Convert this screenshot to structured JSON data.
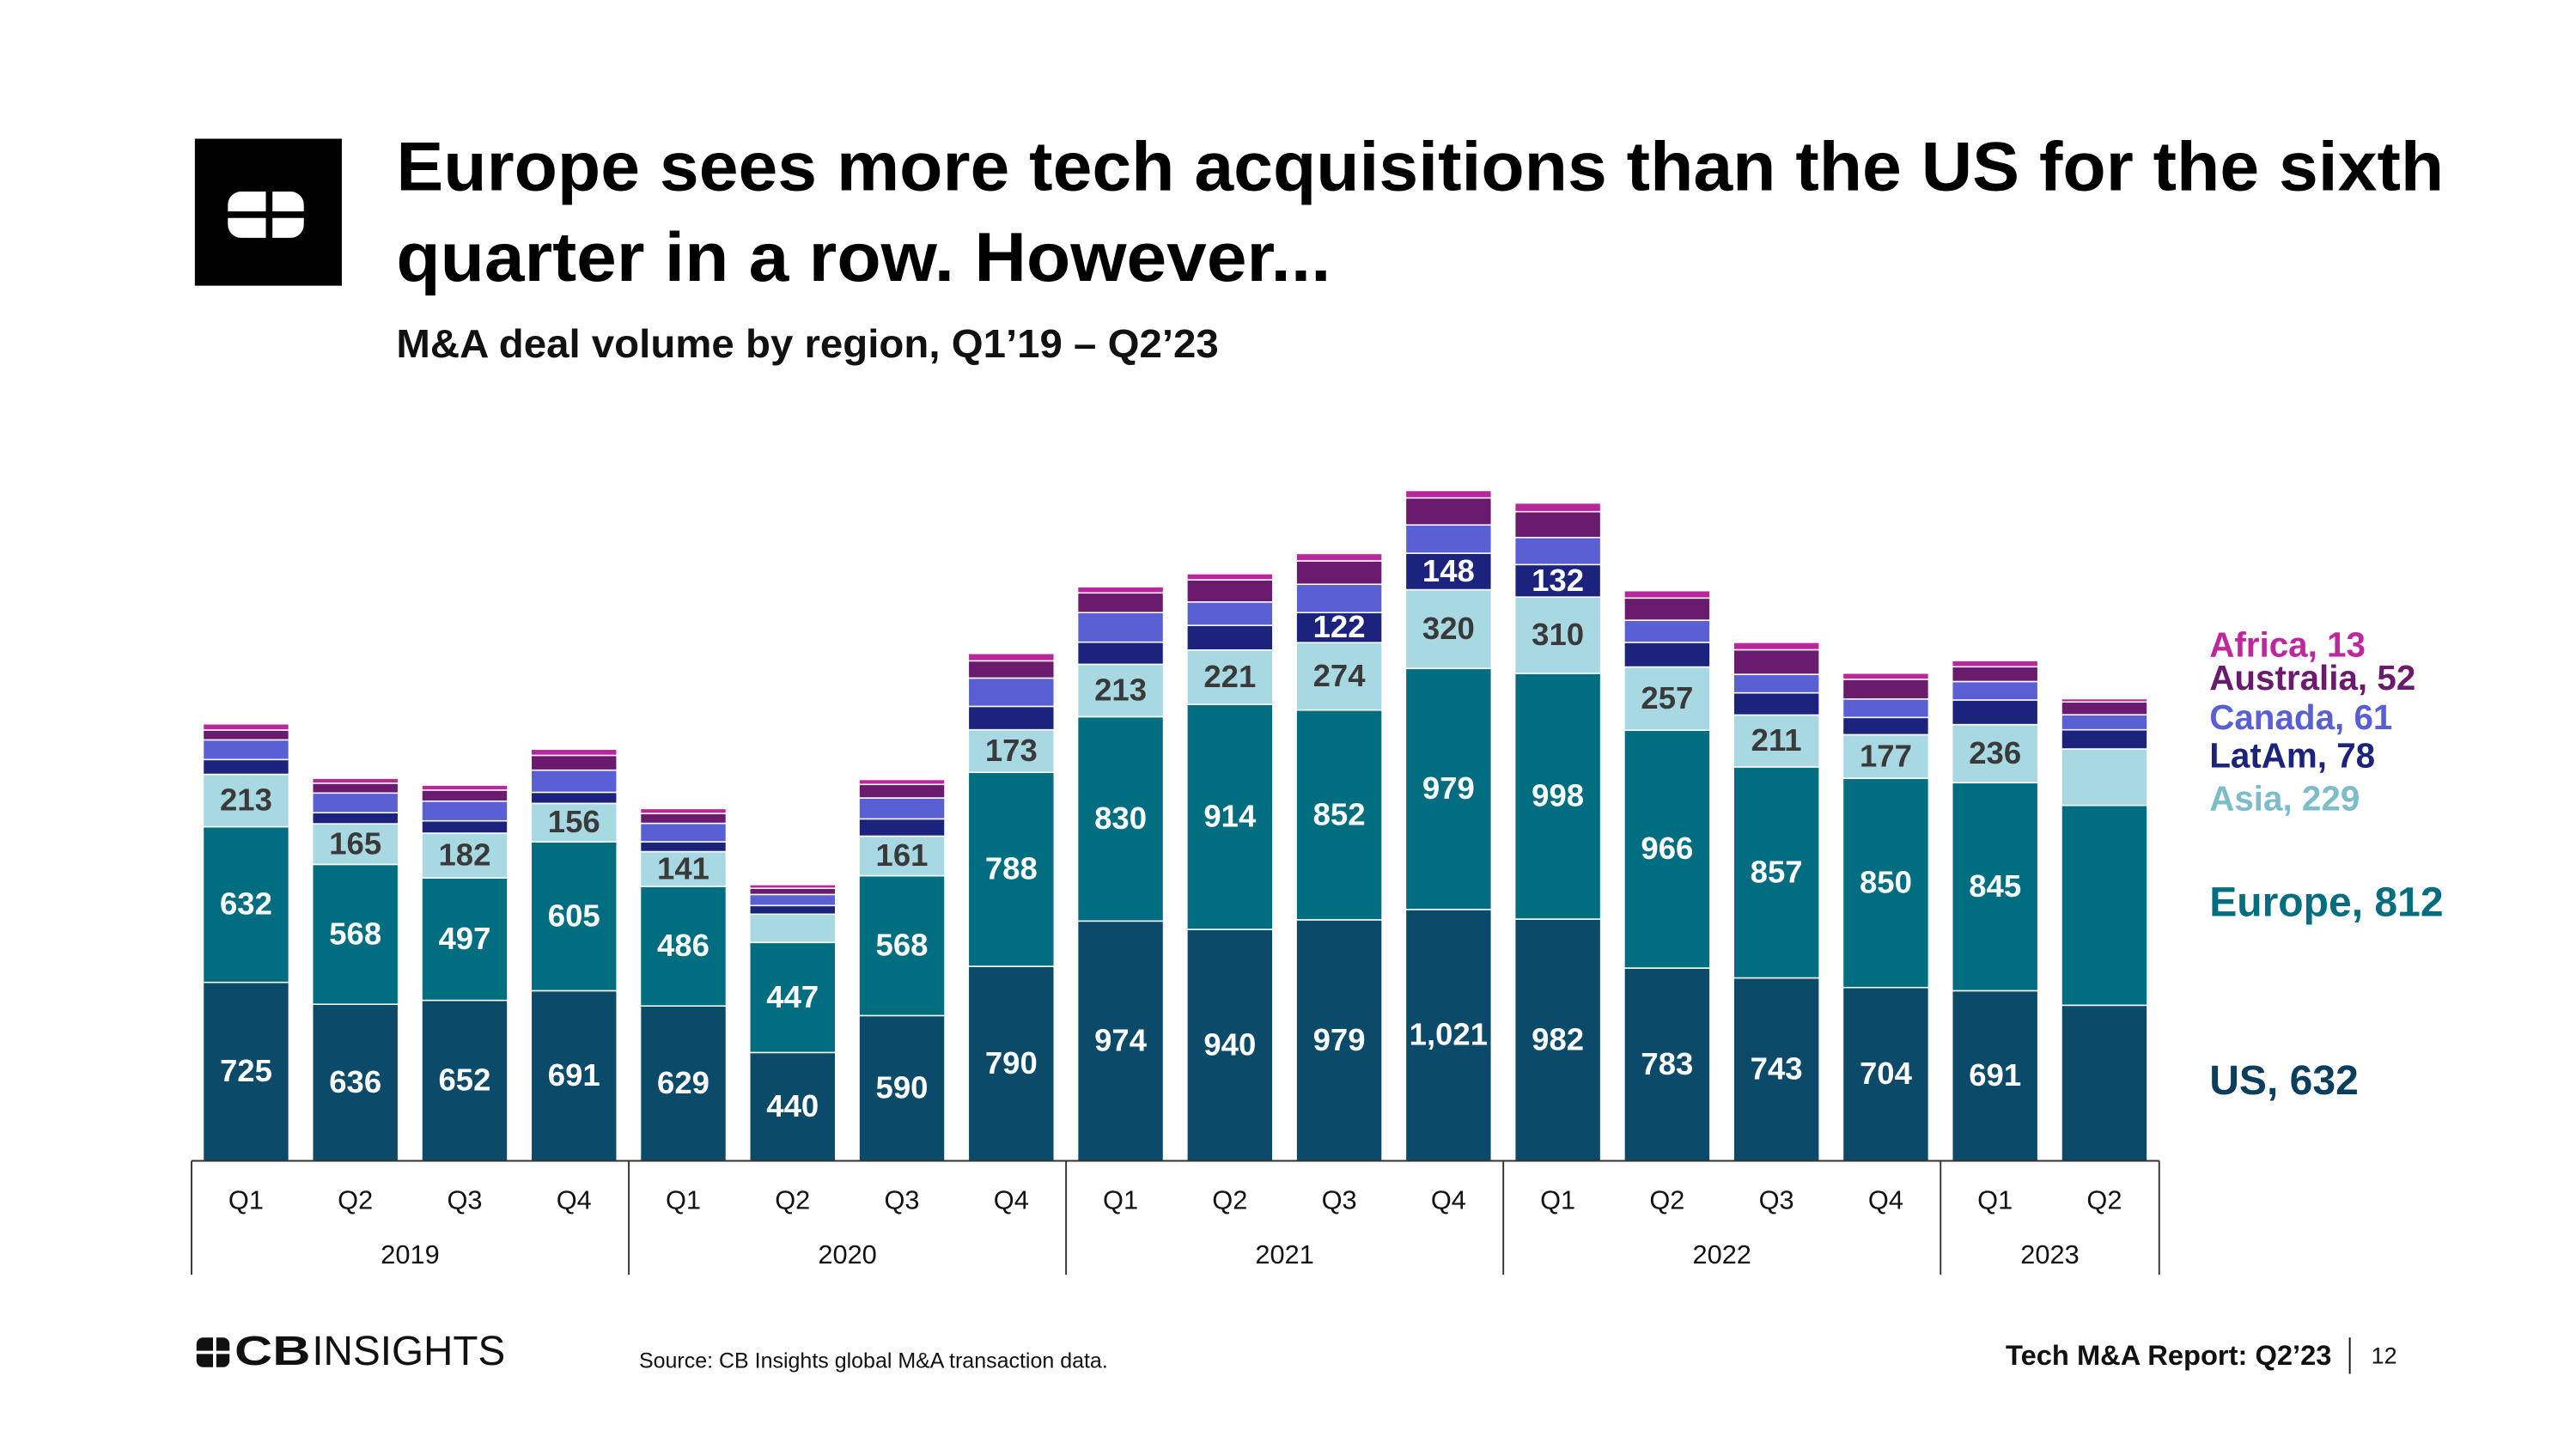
{
  "chart_data": {
    "type": "stacked_bar",
    "title": [
      "Europe sees more tech acquisitions than the US for the sixth",
      "quarter in a row. However..."
    ],
    "subtitle": "M&A deal volume by region, Q1’19 – Q2’23",
    "year_groups": [
      {
        "label": "2019",
        "quarters": [
          "Q1",
          "Q2",
          "Q3",
          "Q4"
        ]
      },
      {
        "label": "2020",
        "quarters": [
          "Q1",
          "Q2",
          "Q3",
          "Q4"
        ]
      },
      {
        "label": "2021",
        "quarters": [
          "Q1",
          "Q2",
          "Q3",
          "Q4"
        ]
      },
      {
        "label": "2022",
        "quarters": [
          "Q1",
          "Q2",
          "Q3",
          "Q4"
        ]
      },
      {
        "label": "2023",
        "quarters": [
          "Q1",
          "Q2"
        ]
      }
    ],
    "ylim": [
      0,
      2750
    ],
    "legend_separator": ", ",
    "series": [
      {
        "name": "US",
        "color": "#0b4a68",
        "legend_color": "#0b3d5c",
        "label_color": "#ffffff",
        "values": [
          725,
          636,
          652,
          691,
          629,
          440,
          590,
          790,
          974,
          940,
          979,
          1021,
          982,
          783,
          743,
          704,
          691,
          632
        ],
        "value_labels": [
          "725",
          "636",
          "652",
          "691",
          "629",
          "440",
          "590",
          "790",
          "974",
          "940",
          "979",
          "1,021",
          "982",
          "783",
          "743",
          "704",
          "691",
          null
        ]
      },
      {
        "name": "Europe",
        "color": "#006e80",
        "legend_color": "#006e80",
        "label_color": "#ffffff",
        "values": [
          632,
          568,
          497,
          605,
          486,
          447,
          568,
          788,
          830,
          914,
          852,
          979,
          998,
          966,
          857,
          850,
          845,
          812
        ],
        "value_labels": [
          "632",
          "568",
          "497",
          "605",
          "486",
          "447",
          "568",
          "788",
          "830",
          "914",
          "852",
          "979",
          "998",
          "966",
          "857",
          "850",
          "845",
          null
        ]
      },
      {
        "name": "Asia",
        "color": "#a8d9e2",
        "legend_color": "#7dbccb",
        "label_color": "#3a3a3a",
        "values": [
          213,
          165,
          182,
          156,
          141,
          115,
          161,
          173,
          213,
          221,
          274,
          320,
          310,
          257,
          211,
          177,
          236,
          229
        ],
        "value_labels": [
          "213",
          "165",
          "182",
          "156",
          "141",
          null,
          "161",
          "173",
          "213",
          "221",
          "274",
          "320",
          "310",
          "257",
          "211",
          "177",
          "236",
          null
        ]
      },
      {
        "name": "LatAm",
        "color": "#1c237c",
        "legend_color": "#1c237c",
        "label_color": "#ffffff",
        "values": [
          60,
          45,
          50,
          45,
          40,
          35,
          70,
          95,
          90,
          100,
          122,
          148,
          132,
          100,
          90,
          70,
          100,
          78
        ],
        "value_labels": [
          null,
          null,
          null,
          null,
          null,
          null,
          null,
          null,
          null,
          null,
          "122",
          "148",
          "132",
          null,
          null,
          null,
          null,
          null
        ]
      },
      {
        "name": "Canada",
        "color": "#5b5fd4",
        "legend_color": "#5b5fd4",
        "label_color": "#ffffff",
        "values": [
          80,
          80,
          80,
          90,
          75,
          45,
          85,
          115,
          120,
          95,
          115,
          115,
          110,
          90,
          75,
          75,
          75,
          61
        ]
      },
      {
        "name": "Australia",
        "color": "#6b1b6e",
        "legend_color": "#6b1b6e",
        "label_color": "#ffffff",
        "values": [
          40,
          40,
          45,
          60,
          40,
          25,
          55,
          70,
          80,
          90,
          95,
          110,
          105,
          90,
          100,
          80,
          60,
          52
        ]
      },
      {
        "name": "Africa",
        "color": "#b8279b",
        "legend_color": "#c0269e",
        "label_color": "#ffffff",
        "values": [
          25,
          20,
          20,
          25,
          20,
          15,
          20,
          30,
          25,
          25,
          30,
          30,
          35,
          30,
          30,
          25,
          25,
          13
        ]
      }
    ]
  },
  "footer": {
    "logo": [
      "CB",
      "INSIGHTS"
    ],
    "source": "Source: CB Insights global M&A transaction data.",
    "report": "Tech M&A Report: Q2’23",
    "page": "12"
  }
}
